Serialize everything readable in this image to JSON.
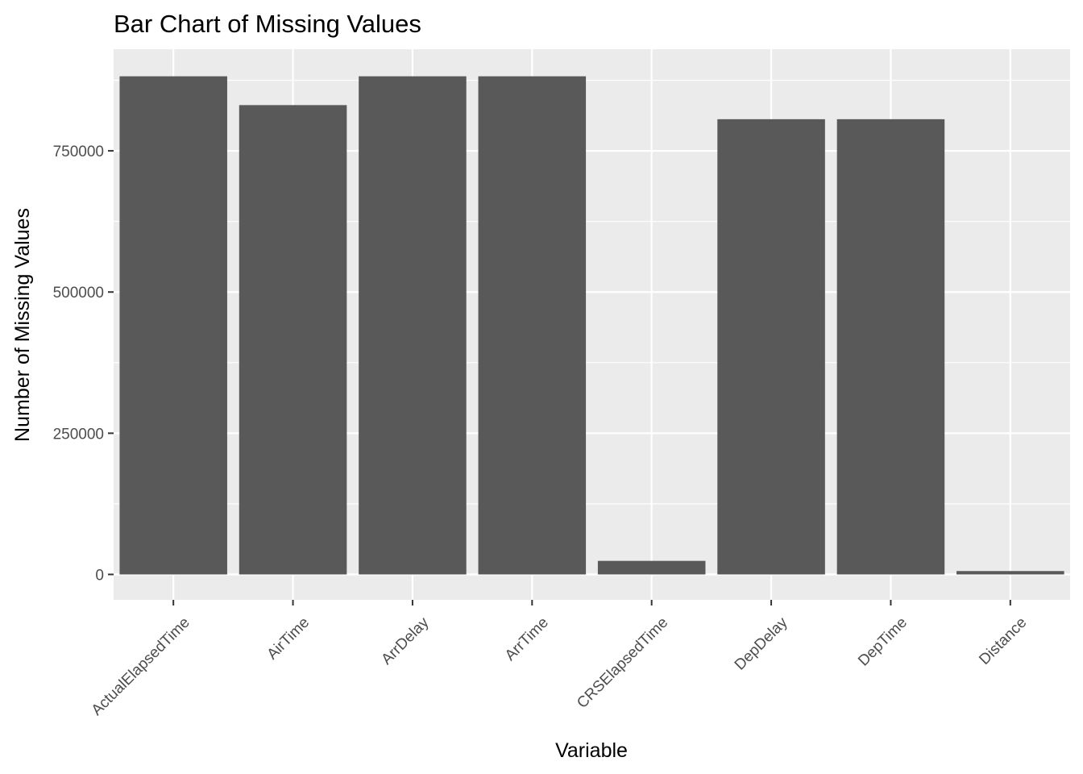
{
  "chart_data": {
    "type": "bar",
    "title": "Bar Chart of Missing Values",
    "xlabel": "Variable",
    "ylabel": "Number of Missing Values",
    "categories": [
      "ActualElapsedTime",
      "AirTime",
      "ArrDelay",
      "ArrTime",
      "CRSElapsedTime",
      "DepDelay",
      "DepTime",
      "Distance"
    ],
    "values": [
      882000,
      831000,
      882000,
      882000,
      24000,
      806000,
      806000,
      6000
    ],
    "ylim": [
      -45000,
      930000
    ],
    "yticks": [
      0,
      250000,
      500000,
      750000
    ],
    "ytick_labels": [
      "0",
      "250000",
      "500000",
      "750000"
    ],
    "grid": true,
    "legend": "none",
    "colors": {
      "bar": "#595959",
      "panel": "#ebebeb",
      "grid": "#ffffff",
      "tick": "#333333"
    }
  }
}
